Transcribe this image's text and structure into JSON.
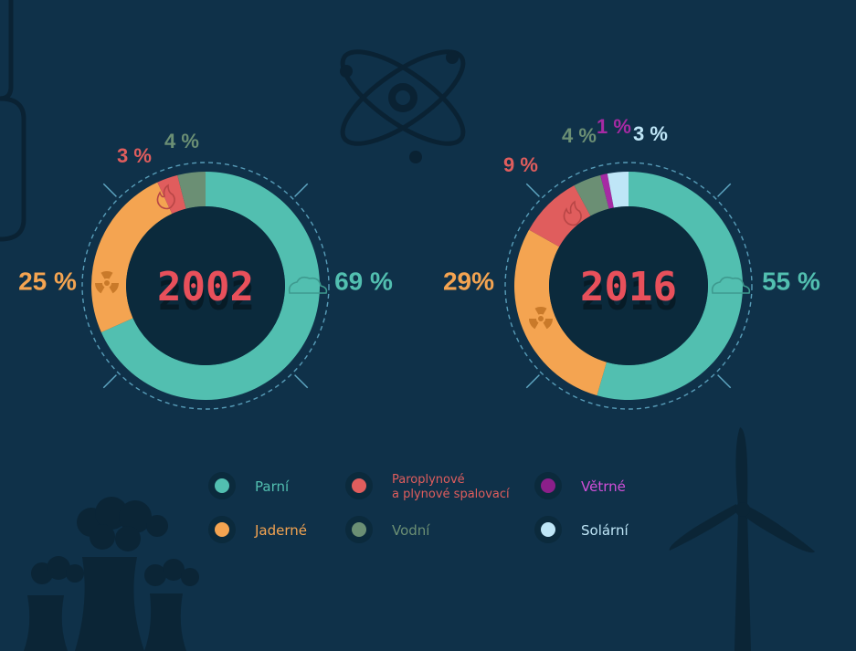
{
  "chart_data": [
    {
      "type": "donut",
      "title": "2002",
      "series": [
        {
          "name": "Parní",
          "value": 69,
          "label": "69 %",
          "color": "#52bfb0"
        },
        {
          "name": "Jaderné",
          "value": 25,
          "label": "25 %",
          "color": "#f4a451"
        },
        {
          "name": "Paroplynové a plynové spalovací",
          "value": 3,
          "label": "3 %",
          "color": "#e05d5d"
        },
        {
          "name": "Vodní",
          "value": 4,
          "label": "4 %",
          "color": "#6b8f74"
        }
      ]
    },
    {
      "type": "donut",
      "title": "2016",
      "series": [
        {
          "name": "Parní",
          "value": 55,
          "label": "55 %",
          "color": "#52bfb0"
        },
        {
          "name": "Jaderné",
          "value": 29,
          "label": "29%",
          "color": "#f4a451"
        },
        {
          "name": "Paroplynové a plynové spalovací",
          "value": 9,
          "label": "9 %",
          "color": "#e05d5d"
        },
        {
          "name": "Vodní",
          "value": 4,
          "label": "4 %",
          "color": "#6b8f74"
        },
        {
          "name": "Větrné",
          "value": 1,
          "label": "1 %",
          "color": "#a62aa3"
        },
        {
          "name": "Solární",
          "value": 3,
          "label": "3 %",
          "color": "#bfe6f7"
        }
      ]
    }
  ],
  "legend": [
    {
      "label": "Parní",
      "color": "#52bfb0",
      "text_color": "#52bfb0"
    },
    {
      "label": "Paroplynové\na plynové spalovací",
      "color": "#e05d5d",
      "text_color": "#e05d5d"
    },
    {
      "label": "Větrné",
      "color": "#8c1f8a",
      "text_color": "#d04fd8"
    },
    {
      "label": "Jaderné",
      "color": "#f4a451",
      "text_color": "#f4a451"
    },
    {
      "label": "Vodní",
      "color": "#6b8f74",
      "text_color": "#6b8f74"
    },
    {
      "label": "Solární",
      "color": "#bfe6f7",
      "text_color": "#bfe6f7"
    }
  ],
  "colors": {
    "background": "#0f3149",
    "center_fill": "#0b2a3c",
    "year_text": "#e8505b",
    "dashed_ring": "#5fa8c4",
    "silhouette": "#0b2536"
  },
  "icons": [
    "atom-icon",
    "nuclear-icon",
    "flame-icon",
    "cloud-icon",
    "wind-turbine-icon",
    "power-plant-icon"
  ]
}
